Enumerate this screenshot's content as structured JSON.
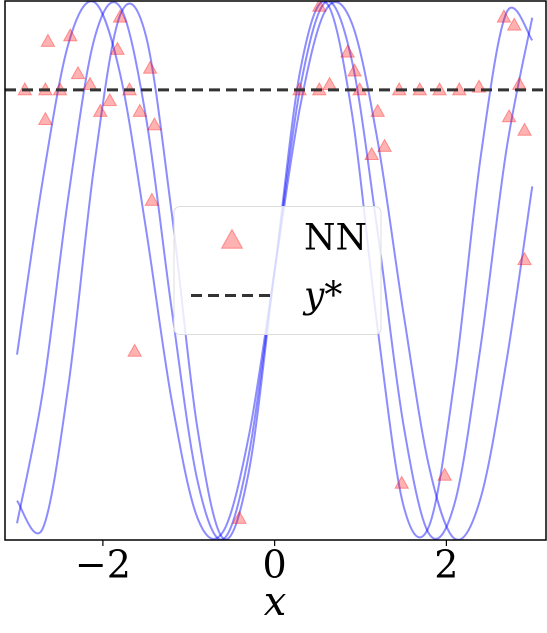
{
  "chart_data": {
    "type": "line",
    "xlabel": "x",
    "xlim": [
      -3.14,
      3.16
    ],
    "ylim": [
      -1,
      1
    ],
    "xticks": [
      {
        "value": -2,
        "label": "−2"
      },
      0,
      2
    ],
    "x": [
      -3.0,
      -2.7,
      -2.4,
      -2.1,
      -1.8,
      -1.5,
      -1.2,
      -0.9,
      -0.6,
      -0.3,
      0,
      0.3,
      0.6,
      0.9,
      1.2,
      1.5,
      1.8,
      2.1,
      2.4,
      2.7,
      3.0
    ],
    "series": [
      {
        "color": "#0000ff",
        "values": [
          -0.938,
          -0.45,
          0.279,
          0.859,
          0.978,
          0.572,
          -0.141,
          -0.778,
          -0.997,
          -0.682,
          0,
          0.682,
          0.997,
          0.778,
          0.141,
          -0.572,
          -0.978,
          -0.859,
          -0.279,
          0.45,
          0.938
        ]
      },
      {
        "color": "#0000ff",
        "values": [
          -0.312,
          0.336,
          0.843,
          0.996,
          0.73,
          0.158,
          -0.48,
          -0.917,
          -0.969,
          -0.613,
          0,
          0.613,
          0.969,
          0.917,
          0.48,
          -0.158,
          -0.73,
          -0.996,
          -0.843,
          -0.336,
          0.312
        ]
      },
      {
        "color": "#0000ff",
        "values": [
          -0.854,
          -0.957,
          -0.423,
          0.392,
          0.947,
          0.872,
          0.217,
          -0.584,
          -0.994,
          -0.745,
          0,
          0.745,
          0.994,
          0.584,
          -0.217,
          -0.872,
          -0.947,
          -0.392,
          0.423,
          0.957,
          0.854
        ]
      }
    ],
    "scatter": {
      "name": "NN",
      "color": "#ff0000",
      "x": [
        -2.64,
        -2.38,
        -1.8,
        -1.83,
        -2.29,
        -2.67,
        -1.92,
        -1.57,
        -1.4,
        -1.43,
        -1.63,
        -0.41,
        0.52,
        0.85,
        1.2,
        1.13,
        1.28,
        1.48,
        1.98,
        2.67,
        2.79,
        2.91,
        2.91,
        2.73,
        -2.91,
        -2.5,
        -2.15,
        -1.69,
        0.29,
        0.64,
        0.99,
        1.45,
        1.92,
        2.38,
        2.85,
        -2.03,
        -1.45,
        0.93,
        -2.67,
        0.52,
        1.69,
        2.15
      ],
      "values": [
        0.85,
        0.87,
        0.94,
        0.82,
        0.73,
        0.56,
        0.63,
        0.59,
        0.54,
        0.26,
        -0.3,
        -0.92,
        0.98,
        0.81,
        0.59,
        0.43,
        0.46,
        -0.79,
        -0.76,
        0.94,
        0.91,
        0.04,
        0.52,
        0.57,
        0.67,
        0.67,
        0.69,
        0.67,
        0.67,
        0.69,
        0.67,
        0.67,
        0.67,
        0.68,
        0.69,
        0.59,
        0.75,
        0.74,
        0.67,
        0.67,
        0.67,
        0.67
      ]
    },
    "hline": {
      "name": "y*",
      "value": 0.67,
      "color": "#333333"
    },
    "legend": "center"
  }
}
